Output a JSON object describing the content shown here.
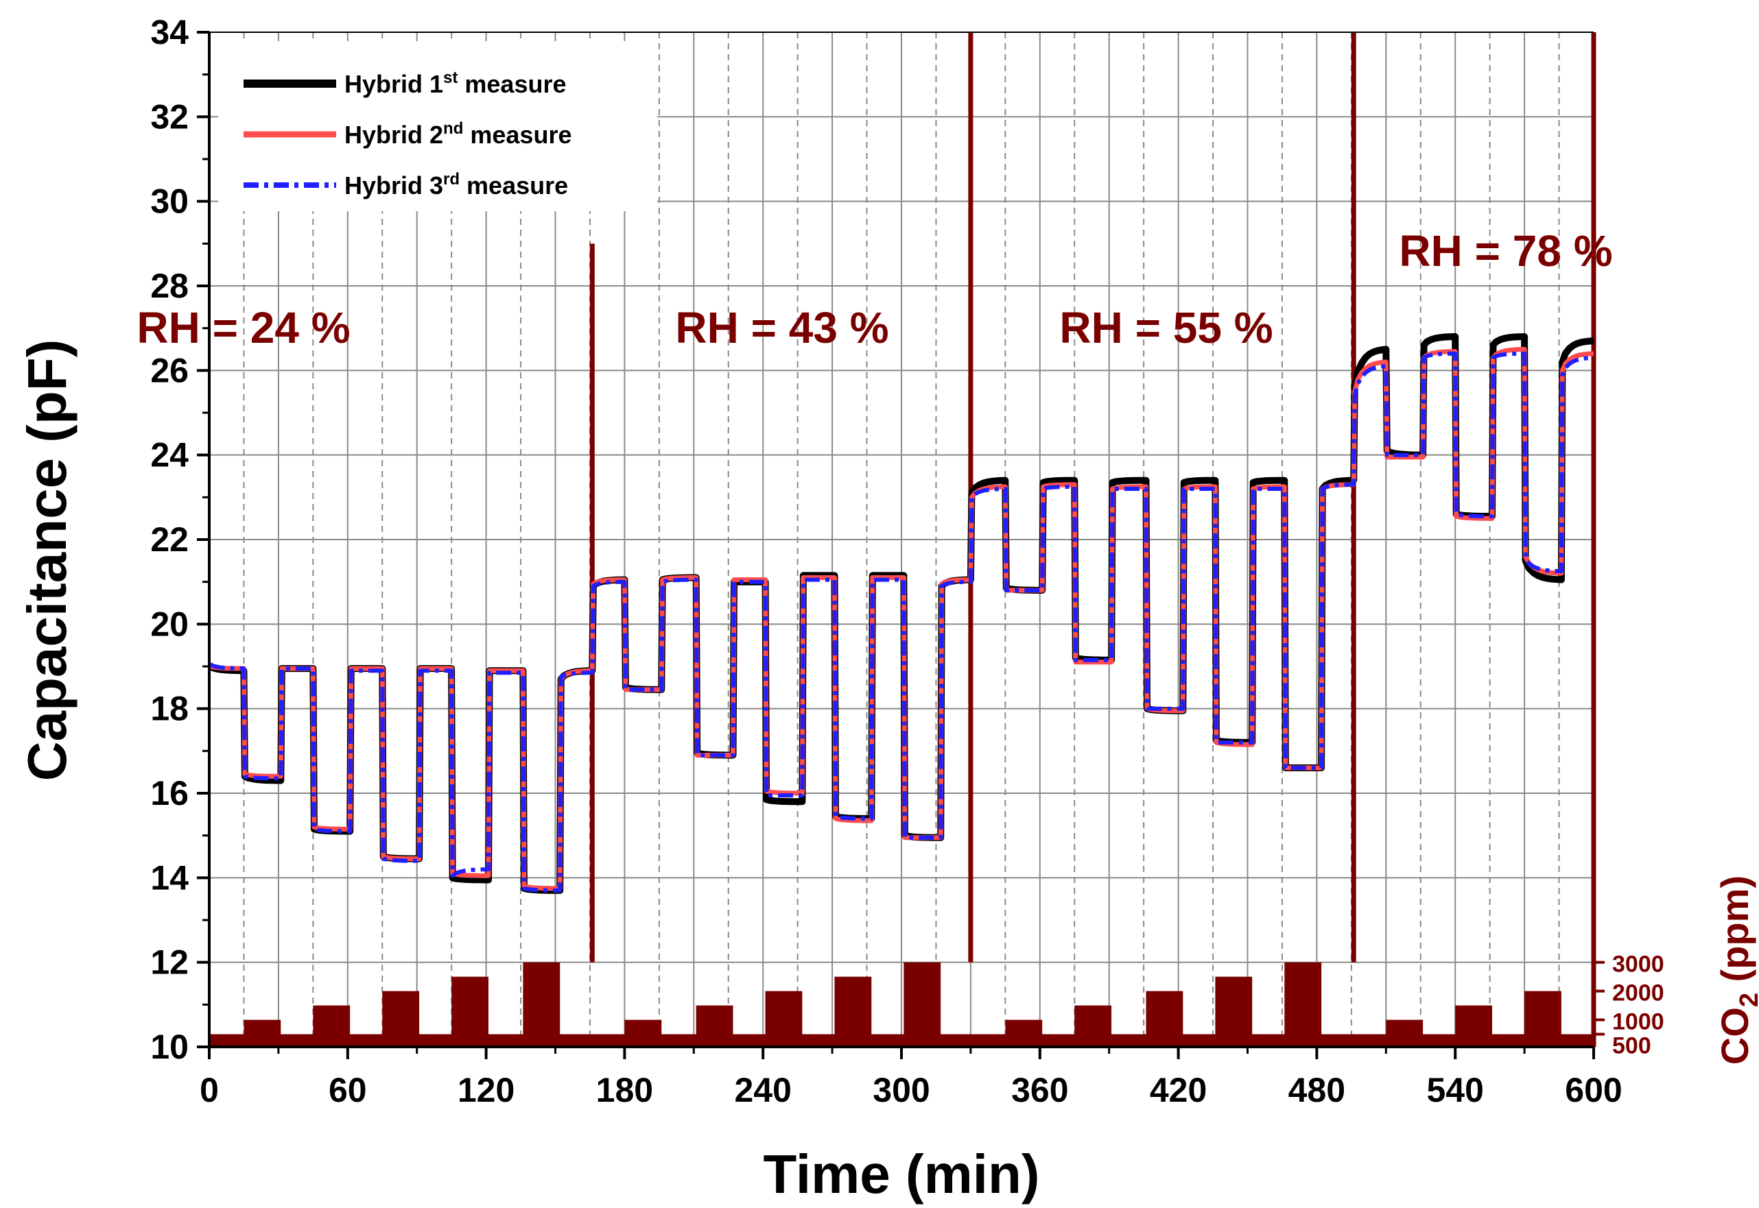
{
  "chart_data": {
    "type": "line",
    "title": "",
    "xlabel": "Time (min)",
    "ylabel": "Capacitance (pF)",
    "y2label": {
      "main": "CO",
      "sub": "2",
      "rest": " (ppm)"
    },
    "xlim": [
      0,
      600
    ],
    "ylim": [
      10,
      34
    ],
    "xticks": [
      "0",
      "60",
      "120",
      "180",
      "240",
      "300",
      "360",
      "420",
      "480",
      "540",
      "600"
    ],
    "yticks": [
      "10",
      "12",
      "14",
      "16",
      "18",
      "20",
      "22",
      "24",
      "26",
      "28",
      "30",
      "32",
      "34"
    ],
    "y2ticks": [
      {
        "label": "500",
        "ppm": 500
      },
      {
        "label": "1000",
        "ppm": 1000
      },
      {
        "label": "2000",
        "ppm": 2000
      },
      {
        "label": "3000",
        "ppm": 3000
      }
    ],
    "grid": true,
    "legend_position": "top-left",
    "legend": [
      {
        "name": "Hybrid 1",
        "sup": "st",
        "suffix": " measure",
        "color": "#000000",
        "style": "solid"
      },
      {
        "name": "Hybrid 2",
        "sup": "nd",
        "suffix": " measure",
        "color": "#ff4d4d",
        "style": "solid"
      },
      {
        "name": "Hybrid 3",
        "sup": "rd",
        "suffix": " measure",
        "color": "#1f1fff",
        "style": "dashdot"
      }
    ],
    "rh_regions": [
      {
        "label": "RH = 24 %",
        "start": 0,
        "end": 166
      },
      {
        "label": "RH = 43 %",
        "start": 166,
        "end": 330
      },
      {
        "label": "RH = 55 %",
        "start": 330,
        "end": 496
      },
      {
        "label": "RH = 78 %",
        "start": 496,
        "end": 600
      }
    ],
    "rh_boundaries": [
      166,
      330,
      496,
      600
    ],
    "co2_bars": [
      {
        "start": 15,
        "end": 31,
        "ppm": 1000
      },
      {
        "start": 45,
        "end": 61,
        "ppm": 1500
      },
      {
        "start": 75,
        "end": 91,
        "ppm": 2000
      },
      {
        "start": 105,
        "end": 121,
        "ppm": 2500
      },
      {
        "start": 136,
        "end": 152,
        "ppm": 3000
      },
      {
        "start": 180,
        "end": 196,
        "ppm": 1000
      },
      {
        "start": 211,
        "end": 227,
        "ppm": 1500
      },
      {
        "start": 241,
        "end": 257,
        "ppm": 2000
      },
      {
        "start": 271,
        "end": 287,
        "ppm": 2500
      },
      {
        "start": 301,
        "end": 317,
        "ppm": 3000
      },
      {
        "start": 345,
        "end": 361,
        "ppm": 1000
      },
      {
        "start": 375,
        "end": 391,
        "ppm": 1500
      },
      {
        "start": 406,
        "end": 422,
        "ppm": 2000
      },
      {
        "start": 436,
        "end": 452,
        "ppm": 2500
      },
      {
        "start": 466,
        "end": 482,
        "ppm": 3000
      },
      {
        "start": 510,
        "end": 526,
        "ppm": 1000
      },
      {
        "start": 540,
        "end": 556,
        "ppm": 1500
      },
      {
        "start": 570,
        "end": 586,
        "ppm": 2000
      }
    ],
    "series": [
      {
        "name": "Hybrid 1st measure",
        "color": "#000000",
        "segments": [
          {
            "start": 0,
            "end": 15,
            "y0": 19.0,
            "y1": 18.9
          },
          {
            "start": 15,
            "end": 31,
            "y0": 16.4,
            "y1": 16.3
          },
          {
            "start": 31,
            "end": 45,
            "y0": 18.95,
            "y1": 18.95
          },
          {
            "start": 45,
            "end": 61,
            "y0": 15.15,
            "y1": 15.1
          },
          {
            "start": 61,
            "end": 75,
            "y0": 18.95,
            "y1": 18.95
          },
          {
            "start": 75,
            "end": 91,
            "y0": 14.5,
            "y1": 14.45
          },
          {
            "start": 91,
            "end": 105,
            "y0": 18.95,
            "y1": 18.95
          },
          {
            "start": 105,
            "end": 121,
            "y0": 14.0,
            "y1": 13.95
          },
          {
            "start": 121,
            "end": 136,
            "y0": 18.9,
            "y1": 18.9
          },
          {
            "start": 136,
            "end": 152,
            "y0": 13.75,
            "y1": 13.7
          },
          {
            "start": 152,
            "end": 166,
            "y0": 18.7,
            "y1": 18.9
          },
          {
            "start": 166,
            "end": 180,
            "y0": 20.9,
            "y1": 21.05
          },
          {
            "start": 180,
            "end": 196,
            "y0": 18.5,
            "y1": 18.45
          },
          {
            "start": 196,
            "end": 211,
            "y0": 21.05,
            "y1": 21.1
          },
          {
            "start": 211,
            "end": 227,
            "y0": 16.95,
            "y1": 16.9
          },
          {
            "start": 227,
            "end": 241,
            "y0": 21.0,
            "y1": 21.0
          },
          {
            "start": 241,
            "end": 257,
            "y0": 15.85,
            "y1": 15.8
          },
          {
            "start": 257,
            "end": 271,
            "y0": 21.15,
            "y1": 21.15
          },
          {
            "start": 271,
            "end": 287,
            "y0": 15.45,
            "y1": 15.4
          },
          {
            "start": 287,
            "end": 301,
            "y0": 21.15,
            "y1": 21.15
          },
          {
            "start": 301,
            "end": 317,
            "y0": 15.0,
            "y1": 14.95
          },
          {
            "start": 317,
            "end": 330,
            "y0": 20.9,
            "y1": 21.05
          },
          {
            "start": 330,
            "end": 345,
            "y0": 23.1,
            "y1": 23.4
          },
          {
            "start": 345,
            "end": 361,
            "y0": 20.85,
            "y1": 20.8
          },
          {
            "start": 361,
            "end": 375,
            "y0": 23.35,
            "y1": 23.4
          },
          {
            "start": 375,
            "end": 391,
            "y0": 19.2,
            "y1": 19.15
          },
          {
            "start": 391,
            "end": 406,
            "y0": 23.35,
            "y1": 23.4
          },
          {
            "start": 406,
            "end": 422,
            "y0": 18.0,
            "y1": 17.95
          },
          {
            "start": 422,
            "end": 436,
            "y0": 23.35,
            "y1": 23.4
          },
          {
            "start": 436,
            "end": 452,
            "y0": 17.25,
            "y1": 17.2
          },
          {
            "start": 452,
            "end": 466,
            "y0": 23.35,
            "y1": 23.4
          },
          {
            "start": 466,
            "end": 482,
            "y0": 16.6,
            "y1": 16.6
          },
          {
            "start": 482,
            "end": 496,
            "y0": 23.2,
            "y1": 23.4
          },
          {
            "start": 496,
            "end": 510,
            "y0": 25.6,
            "y1": 26.5
          },
          {
            "start": 510,
            "end": 526,
            "y0": 24.1,
            "y1": 24.0
          },
          {
            "start": 526,
            "end": 540,
            "y0": 26.6,
            "y1": 26.8
          },
          {
            "start": 540,
            "end": 556,
            "y0": 22.6,
            "y1": 22.55
          },
          {
            "start": 556,
            "end": 570,
            "y0": 26.6,
            "y1": 26.8
          },
          {
            "start": 570,
            "end": 586,
            "y0": 21.5,
            "y1": 21.05
          },
          {
            "start": 586,
            "end": 600,
            "y0": 26.2,
            "y1": 26.7
          }
        ]
      },
      {
        "name": "Hybrid 2nd measure",
        "color": "#ff4d4d",
        "segments": [
          {
            "start": 0,
            "end": 15,
            "y0": 19.0,
            "y1": 18.95
          },
          {
            "start": 15,
            "end": 31,
            "y0": 16.45,
            "y1": 16.4
          },
          {
            "start": 31,
            "end": 45,
            "y0": 18.95,
            "y1": 18.95
          },
          {
            "start": 45,
            "end": 61,
            "y0": 15.2,
            "y1": 15.15
          },
          {
            "start": 61,
            "end": 75,
            "y0": 18.95,
            "y1": 18.95
          },
          {
            "start": 75,
            "end": 91,
            "y0": 14.5,
            "y1": 14.45
          },
          {
            "start": 91,
            "end": 105,
            "y0": 18.95,
            "y1": 18.95
          },
          {
            "start": 105,
            "end": 121,
            "y0": 14.1,
            "y1": 14.05
          },
          {
            "start": 121,
            "end": 136,
            "y0": 18.9,
            "y1": 18.9
          },
          {
            "start": 136,
            "end": 152,
            "y0": 13.8,
            "y1": 13.75
          },
          {
            "start": 152,
            "end": 166,
            "y0": 18.7,
            "y1": 18.9
          },
          {
            "start": 166,
            "end": 180,
            "y0": 20.95,
            "y1": 21.05
          },
          {
            "start": 180,
            "end": 196,
            "y0": 18.45,
            "y1": 18.45
          },
          {
            "start": 196,
            "end": 211,
            "y0": 21.05,
            "y1": 21.1
          },
          {
            "start": 211,
            "end": 227,
            "y0": 16.9,
            "y1": 16.9
          },
          {
            "start": 227,
            "end": 241,
            "y0": 21.05,
            "y1": 21.05
          },
          {
            "start": 241,
            "end": 257,
            "y0": 16.05,
            "y1": 16.0
          },
          {
            "start": 257,
            "end": 271,
            "y0": 21.1,
            "y1": 21.1
          },
          {
            "start": 271,
            "end": 287,
            "y0": 15.4,
            "y1": 15.35
          },
          {
            "start": 287,
            "end": 301,
            "y0": 21.1,
            "y1": 21.1
          },
          {
            "start": 301,
            "end": 317,
            "y0": 14.95,
            "y1": 14.95
          },
          {
            "start": 317,
            "end": 330,
            "y0": 20.95,
            "y1": 21.05
          },
          {
            "start": 330,
            "end": 345,
            "y0": 23.0,
            "y1": 23.25
          },
          {
            "start": 345,
            "end": 361,
            "y0": 20.8,
            "y1": 20.8
          },
          {
            "start": 361,
            "end": 375,
            "y0": 23.25,
            "y1": 23.3
          },
          {
            "start": 375,
            "end": 391,
            "y0": 19.1,
            "y1": 19.1
          },
          {
            "start": 391,
            "end": 406,
            "y0": 23.2,
            "y1": 23.25
          },
          {
            "start": 406,
            "end": 422,
            "y0": 18.0,
            "y1": 17.95
          },
          {
            "start": 422,
            "end": 436,
            "y0": 23.2,
            "y1": 23.25
          },
          {
            "start": 436,
            "end": 452,
            "y0": 17.2,
            "y1": 17.15
          },
          {
            "start": 452,
            "end": 466,
            "y0": 23.2,
            "y1": 23.25
          },
          {
            "start": 466,
            "end": 482,
            "y0": 16.6,
            "y1": 16.6
          },
          {
            "start": 482,
            "end": 496,
            "y0": 23.2,
            "y1": 23.3
          },
          {
            "start": 496,
            "end": 510,
            "y0": 25.5,
            "y1": 26.2
          },
          {
            "start": 510,
            "end": 526,
            "y0": 23.95,
            "y1": 23.95
          },
          {
            "start": 526,
            "end": 540,
            "y0": 26.3,
            "y1": 26.45
          },
          {
            "start": 540,
            "end": 556,
            "y0": 22.55,
            "y1": 22.5
          },
          {
            "start": 556,
            "end": 570,
            "y0": 26.3,
            "y1": 26.5
          },
          {
            "start": 570,
            "end": 586,
            "y0": 21.6,
            "y1": 21.2
          },
          {
            "start": 586,
            "end": 600,
            "y0": 26.0,
            "y1": 26.4
          }
        ]
      },
      {
        "name": "Hybrid 3rd measure",
        "color": "#1f1fff",
        "segments": [
          {
            "start": 0,
            "end": 15,
            "y0": 19.05,
            "y1": 18.95
          },
          {
            "start": 15,
            "end": 31,
            "y0": 16.4,
            "y1": 16.35
          },
          {
            "start": 31,
            "end": 45,
            "y0": 18.95,
            "y1": 18.95
          },
          {
            "start": 45,
            "end": 61,
            "y0": 15.15,
            "y1": 15.1
          },
          {
            "start": 61,
            "end": 75,
            "y0": 18.9,
            "y1": 18.9
          },
          {
            "start": 75,
            "end": 91,
            "y0": 14.45,
            "y1": 14.4
          },
          {
            "start": 91,
            "end": 105,
            "y0": 18.9,
            "y1": 18.9
          },
          {
            "start": 105,
            "end": 121,
            "y0": 14.05,
            "y1": 14.2
          },
          {
            "start": 121,
            "end": 136,
            "y0": 18.85,
            "y1": 18.85
          },
          {
            "start": 136,
            "end": 152,
            "y0": 13.75,
            "y1": 13.7
          },
          {
            "start": 152,
            "end": 166,
            "y0": 18.75,
            "y1": 18.85
          },
          {
            "start": 166,
            "end": 180,
            "y0": 20.9,
            "y1": 21.0
          },
          {
            "start": 180,
            "end": 196,
            "y0": 18.45,
            "y1": 18.45
          },
          {
            "start": 196,
            "end": 211,
            "y0": 21.0,
            "y1": 21.05
          },
          {
            "start": 211,
            "end": 227,
            "y0": 16.9,
            "y1": 16.9
          },
          {
            "start": 227,
            "end": 241,
            "y0": 21.0,
            "y1": 21.0
          },
          {
            "start": 241,
            "end": 257,
            "y0": 15.95,
            "y1": 15.95
          },
          {
            "start": 257,
            "end": 271,
            "y0": 21.05,
            "y1": 21.05
          },
          {
            "start": 271,
            "end": 287,
            "y0": 15.45,
            "y1": 15.4
          },
          {
            "start": 287,
            "end": 301,
            "y0": 21.05,
            "y1": 21.05
          },
          {
            "start": 301,
            "end": 317,
            "y0": 14.95,
            "y1": 14.95
          },
          {
            "start": 317,
            "end": 330,
            "y0": 20.9,
            "y1": 21.0
          },
          {
            "start": 330,
            "end": 345,
            "y0": 23.0,
            "y1": 23.2
          },
          {
            "start": 345,
            "end": 361,
            "y0": 20.8,
            "y1": 20.8
          },
          {
            "start": 361,
            "end": 375,
            "y0": 23.2,
            "y1": 23.25
          },
          {
            "start": 375,
            "end": 391,
            "y0": 19.15,
            "y1": 19.15
          },
          {
            "start": 391,
            "end": 406,
            "y0": 23.2,
            "y1": 23.2
          },
          {
            "start": 406,
            "end": 422,
            "y0": 18.0,
            "y1": 18.0
          },
          {
            "start": 422,
            "end": 436,
            "y0": 23.2,
            "y1": 23.2
          },
          {
            "start": 436,
            "end": 452,
            "y0": 17.2,
            "y1": 17.2
          },
          {
            "start": 452,
            "end": 466,
            "y0": 23.2,
            "y1": 23.2
          },
          {
            "start": 466,
            "end": 482,
            "y0": 16.6,
            "y1": 16.6
          },
          {
            "start": 482,
            "end": 496,
            "y0": 23.2,
            "y1": 23.3
          },
          {
            "start": 496,
            "end": 510,
            "y0": 25.4,
            "y1": 26.1
          },
          {
            "start": 510,
            "end": 526,
            "y0": 24.0,
            "y1": 24.0
          },
          {
            "start": 526,
            "end": 540,
            "y0": 26.3,
            "y1": 26.4
          },
          {
            "start": 540,
            "end": 556,
            "y0": 22.6,
            "y1": 22.55
          },
          {
            "start": 556,
            "end": 570,
            "y0": 26.3,
            "y1": 26.4
          },
          {
            "start": 570,
            "end": 586,
            "y0": 21.55,
            "y1": 21.25
          },
          {
            "start": 586,
            "end": 600,
            "y0": 25.9,
            "y1": 26.3
          }
        ]
      }
    ]
  },
  "colors": {
    "maroon": "#7a0000",
    "grid": "#8a8a8a",
    "axis": "#000000"
  }
}
